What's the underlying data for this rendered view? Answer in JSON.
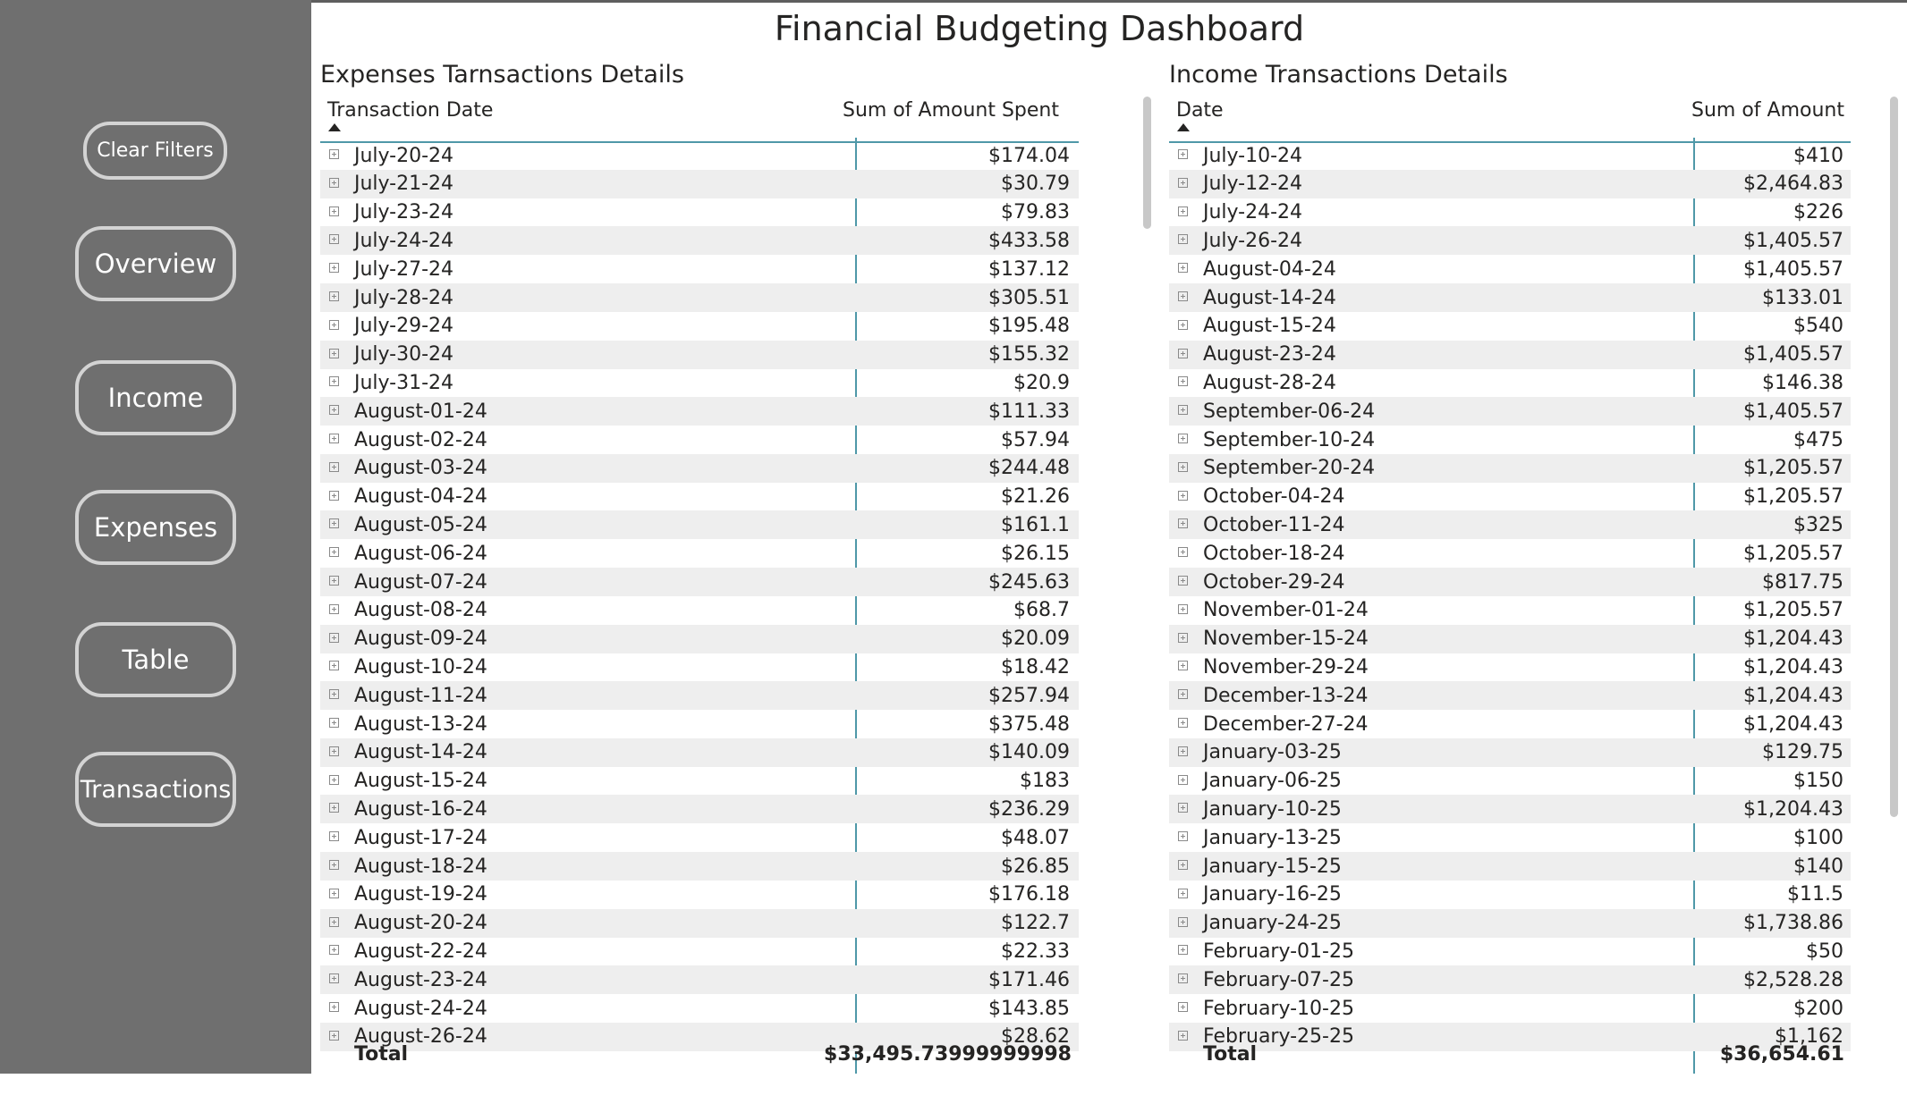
{
  "title": "Financial Budgeting Dashboard",
  "nav": [
    {
      "label": "Clear Filters",
      "name": "clear-filters-button"
    },
    {
      "label": "Overview",
      "name": "overview-button"
    },
    {
      "label": "Income",
      "name": "income-button"
    },
    {
      "label": "Expenses",
      "name": "expenses-button"
    },
    {
      "label": "Table",
      "name": "table-button"
    },
    {
      "label": "Transactions",
      "name": "transactions-button"
    }
  ],
  "expenses": {
    "title": "Expenses Tarnsactions Details",
    "col_date": "Transaction Date",
    "col_amount": "Sum of Amount Spent",
    "rows": [
      [
        "July-20-24",
        "$174.04"
      ],
      [
        "July-21-24",
        "$30.79"
      ],
      [
        "July-23-24",
        "$79.83"
      ],
      [
        "July-24-24",
        "$433.58"
      ],
      [
        "July-27-24",
        "$137.12"
      ],
      [
        "July-28-24",
        "$305.51"
      ],
      [
        "July-29-24",
        "$195.48"
      ],
      [
        "July-30-24",
        "$155.32"
      ],
      [
        "July-31-24",
        "$20.9"
      ],
      [
        "August-01-24",
        "$111.33"
      ],
      [
        "August-02-24",
        "$57.94"
      ],
      [
        "August-03-24",
        "$244.48"
      ],
      [
        "August-04-24",
        "$21.26"
      ],
      [
        "August-05-24",
        "$161.1"
      ],
      [
        "August-06-24",
        "$26.15"
      ],
      [
        "August-07-24",
        "$245.63"
      ],
      [
        "August-08-24",
        "$68.7"
      ],
      [
        "August-09-24",
        "$20.09"
      ],
      [
        "August-10-24",
        "$18.42"
      ],
      [
        "August-11-24",
        "$257.94"
      ],
      [
        "August-13-24",
        "$375.48"
      ],
      [
        "August-14-24",
        "$140.09"
      ],
      [
        "August-15-24",
        "$183"
      ],
      [
        "August-16-24",
        "$236.29"
      ],
      [
        "August-17-24",
        "$48.07"
      ],
      [
        "August-18-24",
        "$26.85"
      ],
      [
        "August-19-24",
        "$176.18"
      ],
      [
        "August-20-24",
        "$122.7"
      ],
      [
        "August-22-24",
        "$22.33"
      ],
      [
        "August-23-24",
        "$171.46"
      ],
      [
        "August-24-24",
        "$143.85"
      ],
      [
        "August-26-24",
        "$28.62"
      ]
    ],
    "total_label": "Total",
    "total_value": "$33,495.73999999998"
  },
  "income": {
    "title": "Income Transactions Details",
    "col_date": "Date",
    "col_amount": "Sum of Amount",
    "rows": [
      [
        "July-10-24",
        "$410"
      ],
      [
        "July-12-24",
        "$2,464.83"
      ],
      [
        "July-24-24",
        "$226"
      ],
      [
        "July-26-24",
        "$1,405.57"
      ],
      [
        "August-04-24",
        "$1,405.57"
      ],
      [
        "August-14-24",
        "$133.01"
      ],
      [
        "August-15-24",
        "$540"
      ],
      [
        "August-23-24",
        "$1,405.57"
      ],
      [
        "August-28-24",
        "$146.38"
      ],
      [
        "September-06-24",
        "$1,405.57"
      ],
      [
        "September-10-24",
        "$475"
      ],
      [
        "September-20-24",
        "$1,205.57"
      ],
      [
        "October-04-24",
        "$1,205.57"
      ],
      [
        "October-11-24",
        "$325"
      ],
      [
        "October-18-24",
        "$1,205.57"
      ],
      [
        "October-29-24",
        "$817.75"
      ],
      [
        "November-01-24",
        "$1,205.57"
      ],
      [
        "November-15-24",
        "$1,204.43"
      ],
      [
        "November-29-24",
        "$1,204.43"
      ],
      [
        "December-13-24",
        "$1,204.43"
      ],
      [
        "December-27-24",
        "$1,204.43"
      ],
      [
        "January-03-25",
        "$129.75"
      ],
      [
        "January-06-25",
        "$150"
      ],
      [
        "January-10-25",
        "$1,204.43"
      ],
      [
        "January-13-25",
        "$100"
      ],
      [
        "January-15-25",
        "$140"
      ],
      [
        "January-16-25",
        "$11.5"
      ],
      [
        "January-24-25",
        "$1,738.86"
      ],
      [
        "February-01-25",
        "$50"
      ],
      [
        "February-07-25",
        "$2,528.28"
      ],
      [
        "February-10-25",
        "$200"
      ],
      [
        "February-25-25",
        "$1,162"
      ]
    ],
    "total_label": "Total",
    "total_value": "$36,654.61"
  }
}
